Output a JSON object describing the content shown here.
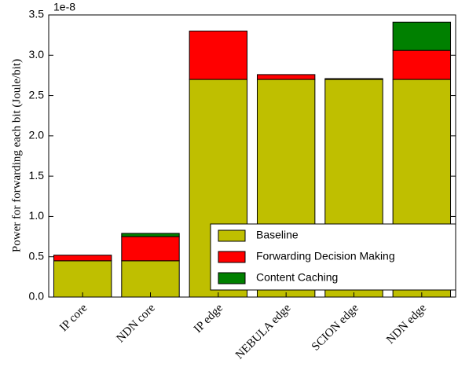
{
  "chart_data": {
    "type": "stacked_bar",
    "y_label": "Power for forwarding each bit (Joule/bit)",
    "y_offset_label": "1e-8",
    "categories": [
      "IP core",
      "NDN core",
      "IP edge",
      "NEBULA edge",
      "SCION edge",
      "NDN edge"
    ],
    "series": [
      {
        "name": "Baseline",
        "color": "#bfbf00",
        "values": [
          0.45,
          0.45,
          2.7,
          2.7,
          2.7,
          2.7
        ]
      },
      {
        "name": "Forwarding Decision Making",
        "color": "#ff0000",
        "values": [
          0.07,
          0.3,
          0.6,
          0.06,
          0.01,
          0.36
        ]
      },
      {
        "name": "Content Caching",
        "color": "#008000",
        "values": [
          0,
          0.04,
          0,
          0,
          0,
          0.35
        ]
      }
    ],
    "ylim": [
      0,
      3.5
    ],
    "yticks": [
      {
        "value": 0,
        "label": "0.0"
      },
      {
        "value": 0.5,
        "label": "0.5"
      },
      {
        "value": 1,
        "label": "1.0"
      },
      {
        "value": 1.5,
        "label": "1.5"
      },
      {
        "value": 2,
        "label": "2.0"
      },
      {
        "value": 2.5,
        "label": "2.5"
      },
      {
        "value": 3,
        "label": "3.0"
      },
      {
        "value": 3.5,
        "label": "3.5"
      }
    ],
    "legend": "lower right"
  }
}
